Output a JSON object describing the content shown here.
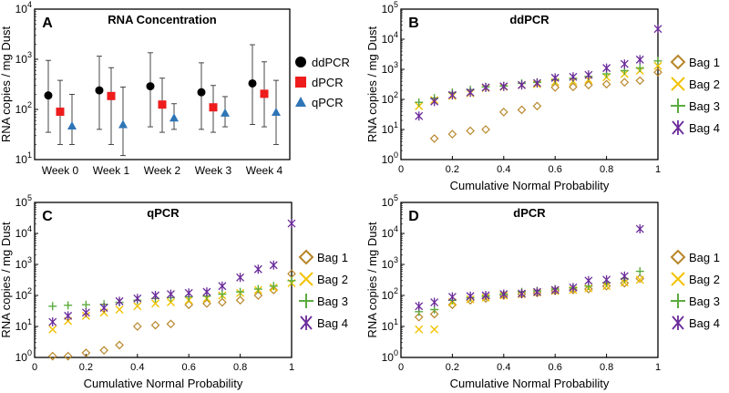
{
  "chart_data": [
    {
      "panel": "A",
      "type": "scatter",
      "title": "RNA Concentration",
      "xlabel": "",
      "ylabel": "RNA copies / mg Dust",
      "yscale": "log",
      "ylim": [
        10,
        10000
      ],
      "categories": [
        "Week 0",
        "Week 1",
        "Week 2",
        "Week 3",
        "Week 4"
      ],
      "legend_position": "right",
      "series": [
        {
          "name": "ddPCR",
          "color": "#000000",
          "marker": "circle",
          "values": [
            190,
            240,
            290,
            220,
            330
          ],
          "err_low": [
            35,
            40,
            45,
            40,
            50
          ],
          "err_high": [
            950,
            1150,
            1350,
            850,
            1950
          ]
        },
        {
          "name": "dPCR",
          "color": "#ee1c1c",
          "marker": "square",
          "values": [
            90,
            185,
            125,
            110,
            205
          ],
          "err_low": [
            20,
            20,
            35,
            35,
            45
          ],
          "err_high": [
            380,
            680,
            420,
            300,
            890
          ]
        },
        {
          "name": "qPCR",
          "color": "#2e75b6",
          "marker": "triangle",
          "values": [
            47,
            50,
            68,
            85,
            88
          ],
          "err_low": [
            20,
            12,
            40,
            45,
            20
          ],
          "err_high": [
            200,
            280,
            130,
            180,
            380
          ]
        }
      ]
    },
    {
      "panel": "B",
      "type": "scatter",
      "title": "ddPCR",
      "xlabel": "Cumulative Normal Probability",
      "ylabel": "RNA copies / mg Dust",
      "yscale": "log",
      "xlim": [
        0,
        1
      ],
      "ylim": [
        1,
        100000
      ],
      "legend_position": "right",
      "series": [
        {
          "name": "Bag 1",
          "color": "#b8862a",
          "marker": "diamond",
          "x": [
            0.13,
            0.2,
            0.27,
            0.33,
            0.4,
            0.47,
            0.53,
            0.6,
            0.67,
            0.73,
            0.8,
            0.87,
            0.93,
            1.0
          ],
          "y": [
            5,
            7,
            9,
            10,
            38,
            45,
            60,
            250,
            260,
            300,
            320,
            370,
            420,
            800
          ]
        },
        {
          "name": "Bag 2",
          "color": "#f2c200",
          "marker": "x",
          "x": [
            0.07,
            0.13,
            0.2,
            0.27,
            0.33,
            0.4,
            0.47,
            0.53,
            0.6,
            0.67,
            0.73,
            0.8,
            0.87,
            0.93,
            1.0
          ],
          "y": [
            60,
            95,
            130,
            160,
            240,
            260,
            300,
            320,
            380,
            400,
            450,
            550,
            700,
            900,
            1300
          ]
        },
        {
          "name": "Bag 3",
          "color": "#5aab3e",
          "marker": "plus",
          "x": [
            0.07,
            0.13,
            0.2,
            0.27,
            0.33,
            0.4,
            0.47,
            0.53,
            0.6,
            0.67,
            0.73,
            0.8,
            0.87,
            0.93,
            1.0
          ],
          "y": [
            80,
            110,
            170,
            210,
            260,
            280,
            340,
            370,
            450,
            500,
            580,
            700,
            900,
            1100,
            1900
          ]
        },
        {
          "name": "Bag 4",
          "color": "#6a2a9a",
          "marker": "asterisk",
          "x": [
            0.07,
            0.13,
            0.2,
            0.27,
            0.33,
            0.4,
            0.47,
            0.53,
            0.6,
            0.67,
            0.73,
            0.8,
            0.87,
            0.93,
            1.0
          ],
          "y": [
            28,
            85,
            140,
            170,
            250,
            270,
            300,
            350,
            520,
            560,
            650,
            1100,
            1500,
            2100,
            22000
          ]
        }
      ]
    },
    {
      "panel": "C",
      "type": "scatter",
      "title": "qPCR",
      "xlabel": "Cumulative Normal Probability",
      "ylabel": "RNA copies / mg Dust",
      "yscale": "log",
      "xlim": [
        0,
        1
      ],
      "ylim": [
        1,
        100000
      ],
      "legend_position": "right",
      "series": [
        {
          "name": "Bag 1",
          "color": "#b8862a",
          "marker": "diamond",
          "x": [
            0.07,
            0.13,
            0.2,
            0.27,
            0.33,
            0.4,
            0.47,
            0.53,
            0.6,
            0.67,
            0.73,
            0.8,
            0.87,
            0.93,
            1.0
          ],
          "y": [
            1.1,
            1.1,
            1.4,
            1.7,
            2.5,
            10,
            11,
            12,
            50,
            55,
            60,
            70,
            100,
            150,
            500
          ]
        },
        {
          "name": "Bag 2",
          "color": "#f2c200",
          "marker": "x",
          "x": [
            0.07,
            0.13,
            0.2,
            0.27,
            0.33,
            0.4,
            0.47,
            0.53,
            0.6,
            0.67,
            0.73,
            0.8,
            0.87,
            0.93,
            1.0
          ],
          "y": [
            8,
            15,
            22,
            28,
            35,
            45,
            55,
            60,
            70,
            80,
            100,
            120,
            150,
            180,
            250
          ]
        },
        {
          "name": "Bag 3",
          "color": "#5aab3e",
          "marker": "plus",
          "x": [
            0.07,
            0.13,
            0.2,
            0.27,
            0.33,
            0.4,
            0.47,
            0.53,
            0.6,
            0.67,
            0.73,
            0.8,
            0.87,
            0.93,
            1.0
          ],
          "y": [
            45,
            48,
            50,
            52,
            60,
            70,
            80,
            85,
            90,
            95,
            110,
            130,
            160,
            200,
            300
          ]
        },
        {
          "name": "Bag 4",
          "color": "#6a2a9a",
          "marker": "asterisk",
          "x": [
            0.07,
            0.13,
            0.2,
            0.27,
            0.33,
            0.4,
            0.47,
            0.53,
            0.6,
            0.67,
            0.73,
            0.8,
            0.87,
            0.93,
            1.0
          ],
          "y": [
            14,
            22,
            28,
            40,
            65,
            80,
            100,
            110,
            120,
            130,
            200,
            380,
            700,
            950,
            21000
          ]
        }
      ]
    },
    {
      "panel": "D",
      "type": "scatter",
      "title": "dPCR",
      "xlabel": "Cumulative Normal Probability",
      "ylabel": "RNA copies / mg Dust",
      "yscale": "log",
      "xlim": [
        0,
        1
      ],
      "ylim": [
        1,
        100000
      ],
      "legend_position": "right",
      "series": [
        {
          "name": "Bag 1",
          "color": "#b8862a",
          "marker": "diamond",
          "x": [
            0.07,
            0.13,
            0.2,
            0.27,
            0.33,
            0.4,
            0.47,
            0.53,
            0.6,
            0.67,
            0.73,
            0.8,
            0.87,
            0.93
          ],
          "y": [
            20,
            25,
            50,
            70,
            80,
            100,
            110,
            120,
            140,
            150,
            160,
            200,
            250,
            350
          ]
        },
        {
          "name": "Bag 2",
          "color": "#f2c200",
          "marker": "x",
          "x": [
            0.07,
            0.13,
            0.2,
            0.27,
            0.33,
            0.4,
            0.47,
            0.53,
            0.6,
            0.67,
            0.73,
            0.8,
            0.87,
            0.93
          ],
          "y": [
            8,
            8,
            60,
            75,
            85,
            100,
            110,
            125,
            140,
            150,
            170,
            200,
            260,
            320
          ]
        },
        {
          "name": "Bag 3",
          "color": "#5aab3e",
          "marker": "plus",
          "x": [
            0.07,
            0.13,
            0.2,
            0.27,
            0.33,
            0.4,
            0.47,
            0.53,
            0.6,
            0.67,
            0.73,
            0.8,
            0.87,
            0.93
          ],
          "y": [
            30,
            35,
            70,
            85,
            95,
            110,
            130,
            140,
            160,
            175,
            200,
            260,
            350,
            600
          ]
        },
        {
          "name": "Bag 4",
          "color": "#6a2a9a",
          "marker": "asterisk",
          "x": [
            0.07,
            0.13,
            0.2,
            0.27,
            0.33,
            0.4,
            0.47,
            0.53,
            0.6,
            0.67,
            0.73,
            0.8,
            0.87,
            0.93
          ],
          "y": [
            45,
            60,
            90,
            95,
            100,
            110,
            115,
            130,
            150,
            180,
            300,
            320,
            420,
            14000
          ]
        }
      ]
    }
  ]
}
